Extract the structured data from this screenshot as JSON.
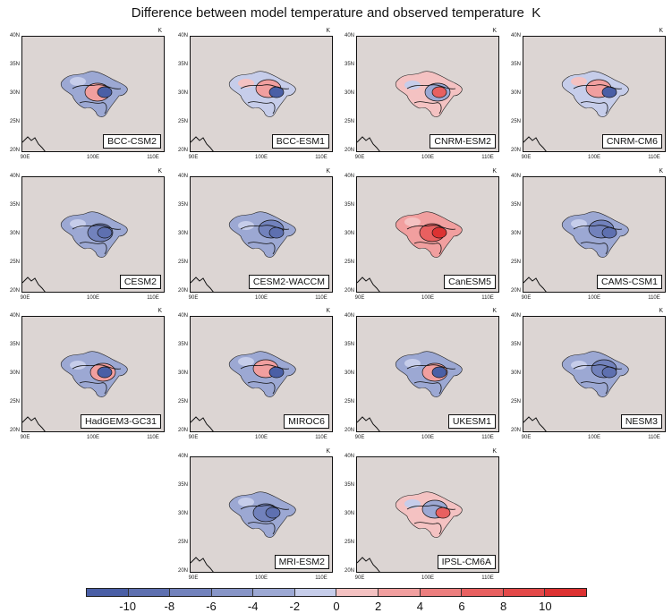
{
  "title": "Difference between model temperature and observed temperature",
  "unit_label": "K",
  "lat_labels": [
    "40N",
    "35N",
    "30N",
    "25N",
    "20N"
  ],
  "lon_labels": [
    "90E",
    "100E",
    "110E"
  ],
  "panels": [
    {
      "name": "BCC-CSM2",
      "tone": "mixed-blue"
    },
    {
      "name": "BCC-ESM1",
      "tone": "mixed"
    },
    {
      "name": "CNRM-ESM2",
      "tone": "mixed-red"
    },
    {
      "name": "CNRM-CM6",
      "tone": "mixed"
    },
    {
      "name": "CESM2",
      "tone": "blue"
    },
    {
      "name": "CESM2-WACCM",
      "tone": "blue"
    },
    {
      "name": "CanESM5",
      "tone": "red"
    },
    {
      "name": "CAMS-CSM1",
      "tone": "blue"
    },
    {
      "name": "HadGEM3-GC31",
      "tone": "mixed-blue"
    },
    {
      "name": "MIROC6",
      "tone": "mixed-blue"
    },
    {
      "name": "UKESM1",
      "tone": "mixed-blue"
    },
    {
      "name": "NESM3",
      "tone": "blue"
    },
    {
      "name": "MRI-ESM2",
      "tone": "blue"
    },
    {
      "name": "IPSL-CM6A",
      "tone": "mixed-red"
    }
  ],
  "colorbar": {
    "labels": [
      "-10",
      "-8",
      "-6",
      "-4",
      "-2",
      "0",
      "2",
      "4",
      "6",
      "8",
      "10"
    ],
    "colors": [
      "#4a5fa6",
      "#5e70b0",
      "#7282bc",
      "#8795c7",
      "#9ca8d3",
      "#c6cdea",
      "#f4c2c2",
      "#f19f9f",
      "#ec7e7e",
      "#e86060",
      "#e34848",
      "#dd3232"
    ]
  }
}
